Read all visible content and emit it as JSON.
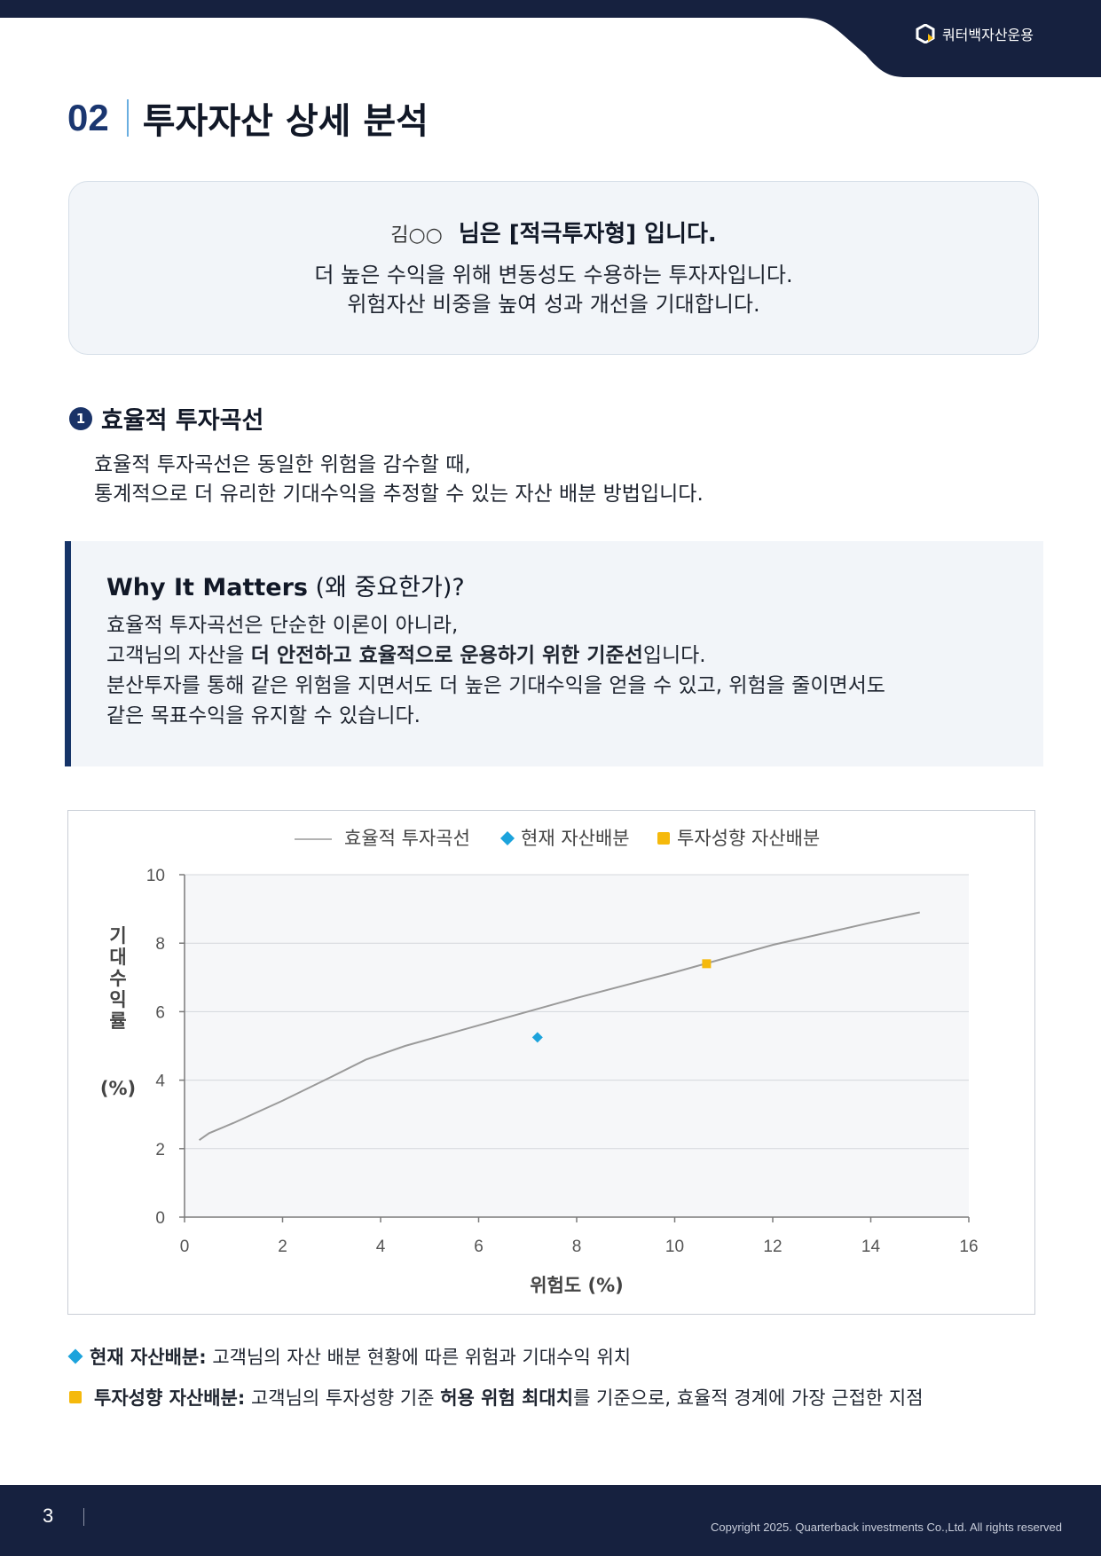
{
  "header": {
    "brand": "쿼터백자산운용",
    "brand_icon": "hexagon-logo-icon",
    "color": "#16213f"
  },
  "title": {
    "number": "02",
    "text": "투자자산 상세 분석"
  },
  "profile": {
    "name": "김○○",
    "type_text": "님은 [적극투자형] 입니다.",
    "desc_line1": "더 높은 수익을 위해 변동성도 수용하는 투자자입니다.",
    "desc_line2": "위험자산 비중을 높여 성과 개선을 기대합니다."
  },
  "section": {
    "badge": "1",
    "title": "효율적 투자곡선",
    "body_line1": "효율적 투자곡선은 동일한 위험을 감수할 때,",
    "body_line2": "통계적으로 더 유리한 기대수익을 추정할 수 있는 자산 배분 방법입니다."
  },
  "why": {
    "title_bold": "Why It Matters",
    "title_rest": " (왜 중요한가)?",
    "line1": "효율적 투자곡선은 단순한 이론이 아니라,",
    "line2_pre": "고객님의 자산을 ",
    "line2_bold": "더 안전하고 효율적으로 운용하기 위한 기준선",
    "line2_post": "입니다.",
    "line3": "분산투자를 통해 같은 위험을 지면서도 더 높은 기대수익을 얻을 수 있고, 위험을 줄이면서도",
    "line4": "같은 목표수익을 유지할 수 있습니다."
  },
  "chart_data": {
    "type": "line",
    "xlabel": "위험도 (%)",
    "ylabel": "기대수익률",
    "ylabel_unit": "(%)",
    "xlim": [
      0,
      16
    ],
    "ylim": [
      0,
      10
    ],
    "x_ticks": [
      "0",
      "2",
      "4",
      "6",
      "8",
      "10",
      "12",
      "14",
      "16"
    ],
    "y_ticks": [
      "0",
      "2",
      "4",
      "6",
      "8",
      "10"
    ],
    "grid": "horizontal",
    "legend_position": "top",
    "series": [
      {
        "name": "효율적 투자곡선",
        "kind": "line",
        "color": "#9a9a9a",
        "x": [
          0.3,
          0.5,
          1,
          2,
          3,
          3.7,
          4.5,
          6,
          8,
          10,
          12,
          14,
          15
        ],
        "y": [
          2.25,
          2.45,
          2.75,
          3.4,
          4.1,
          4.6,
          5.0,
          5.6,
          6.4,
          7.15,
          7.95,
          8.6,
          8.9
        ]
      },
      {
        "name": "현재 자산배분",
        "kind": "point",
        "marker": "diamond",
        "color": "#1ca3dc",
        "x": [
          7.2
        ],
        "y": [
          5.25
        ]
      },
      {
        "name": "투자성향 자산배분",
        "kind": "point",
        "marker": "square",
        "color": "#f5b90c",
        "x": [
          10.65
        ],
        "y": [
          7.4
        ]
      }
    ]
  },
  "notes": {
    "current_label": "현재 자산배분:",
    "current_text": " 고객님의 자산 배분 현황에 따른 위험과 기대수익 위치",
    "target_label": "투자성향 자산배분:",
    "target_text_pre": " 고객님의 투자성향 기준 ",
    "target_text_bold": "허용 위험 최대치",
    "target_text_post": "를 기준으로, 효율적 경계에 가장 근접한 지점"
  },
  "footer": {
    "page": "3",
    "copyright": "Copyright 2025. Quarterback investments Co.,Ltd. All rights reserved"
  }
}
